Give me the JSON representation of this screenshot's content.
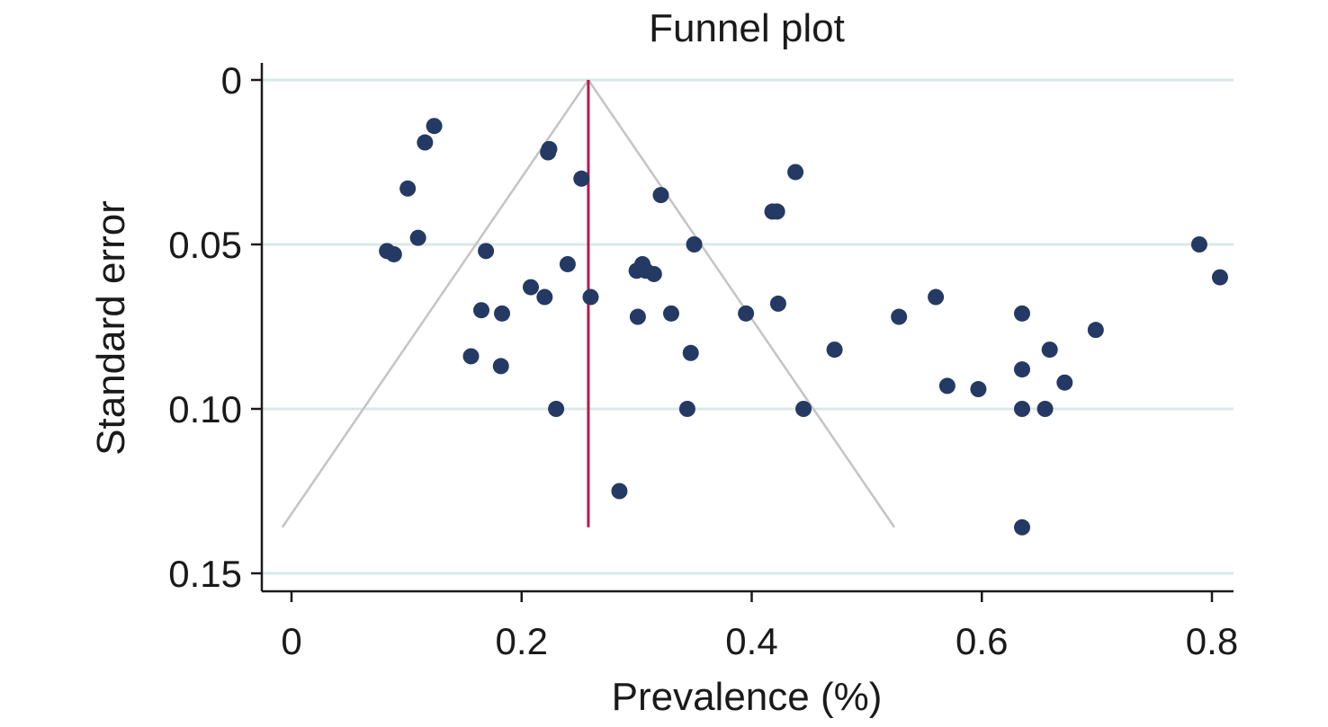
{
  "chart_data": {
    "type": "scatter",
    "title": "Funnel plot",
    "xlabel": "Prevalence (%)",
    "ylabel": "Standard error",
    "xlim": [
      -0.008,
      0.82
    ],
    "ylim": [
      0.155,
      -0.005
    ],
    "y_inverted": true,
    "x_ticks": [
      0,
      0.2,
      0.4,
      0.6,
      0.8
    ],
    "x_tick_labels": [
      "0",
      "0.2",
      "0.4",
      "0.6",
      "0.8"
    ],
    "y_ticks": [
      0,
      0.05,
      0.1,
      0.15
    ],
    "y_tick_labels": [
      "0",
      "0.05",
      "0.10",
      "0.15"
    ],
    "grid": "horizontal",
    "pooled_estimate": 0.258,
    "funnel": {
      "apex": [
        0.258,
        0
      ],
      "left_base": [
        -0.008,
        0.136
      ],
      "right_base": [
        0.524,
        0.136
      ]
    },
    "points": [
      {
        "x": 0.124,
        "y": 0.014
      },
      {
        "x": 0.116,
        "y": 0.019
      },
      {
        "x": 0.224,
        "y": 0.021
      },
      {
        "x": 0.223,
        "y": 0.022
      },
      {
        "x": 0.252,
        "y": 0.03
      },
      {
        "x": 0.101,
        "y": 0.033
      },
      {
        "x": 0.438,
        "y": 0.028
      },
      {
        "x": 0.321,
        "y": 0.035
      },
      {
        "x": 0.418,
        "y": 0.04
      },
      {
        "x": 0.422,
        "y": 0.04
      },
      {
        "x": 0.11,
        "y": 0.048
      },
      {
        "x": 0.083,
        "y": 0.052
      },
      {
        "x": 0.089,
        "y": 0.053
      },
      {
        "x": 0.169,
        "y": 0.052
      },
      {
        "x": 0.35,
        "y": 0.05
      },
      {
        "x": 0.789,
        "y": 0.05
      },
      {
        "x": 0.24,
        "y": 0.056
      },
      {
        "x": 0.305,
        "y": 0.056
      },
      {
        "x": 0.3,
        "y": 0.058
      },
      {
        "x": 0.308,
        "y": 0.058
      },
      {
        "x": 0.315,
        "y": 0.059
      },
      {
        "x": 0.807,
        "y": 0.06
      },
      {
        "x": 0.208,
        "y": 0.063
      },
      {
        "x": 0.22,
        "y": 0.066
      },
      {
        "x": 0.26,
        "y": 0.066
      },
      {
        "x": 0.56,
        "y": 0.066
      },
      {
        "x": 0.423,
        "y": 0.068
      },
      {
        "x": 0.165,
        "y": 0.07
      },
      {
        "x": 0.183,
        "y": 0.071
      },
      {
        "x": 0.33,
        "y": 0.071
      },
      {
        "x": 0.395,
        "y": 0.071
      },
      {
        "x": 0.635,
        "y": 0.071
      },
      {
        "x": 0.301,
        "y": 0.072
      },
      {
        "x": 0.528,
        "y": 0.072
      },
      {
        "x": 0.699,
        "y": 0.076
      },
      {
        "x": 0.472,
        "y": 0.082
      },
      {
        "x": 0.659,
        "y": 0.082
      },
      {
        "x": 0.156,
        "y": 0.084
      },
      {
        "x": 0.347,
        "y": 0.083
      },
      {
        "x": 0.182,
        "y": 0.087
      },
      {
        "x": 0.635,
        "y": 0.088
      },
      {
        "x": 0.672,
        "y": 0.092
      },
      {
        "x": 0.57,
        "y": 0.093
      },
      {
        "x": 0.597,
        "y": 0.094
      },
      {
        "x": 0.23,
        "y": 0.1
      },
      {
        "x": 0.344,
        "y": 0.1
      },
      {
        "x": 0.445,
        "y": 0.1
      },
      {
        "x": 0.635,
        "y": 0.1
      },
      {
        "x": 0.655,
        "y": 0.1
      },
      {
        "x": 0.285,
        "y": 0.125
      },
      {
        "x": 0.635,
        "y": 0.136
      }
    ]
  },
  "colors": {
    "point": "#243a64",
    "pooled_line": "#b31b4b",
    "funnel_lines": "#c4c4c4",
    "grid": "#d9e8e8",
    "axis": "#1a1a1a"
  }
}
